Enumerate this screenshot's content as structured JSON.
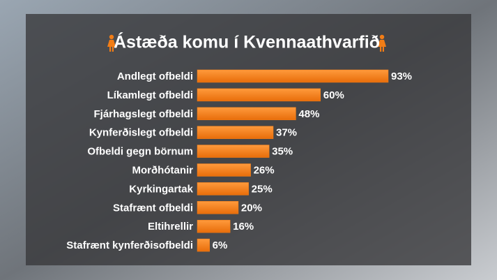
{
  "chart_data": {
    "type": "bar",
    "orientation": "horizontal",
    "title": "Ástæða komu í Kvennaathvarfið",
    "categories": [
      "Andlegt ofbeldi",
      "Líkamlegt ofbeldi",
      "Fjárhagslegt ofbeldi",
      "Kynferðislegt ofbeldi",
      "Ofbeldi gegn börnum",
      "Morðhótanir",
      "Kyrkingartak",
      "Stafrænt ofbeldi",
      "Eltihrellir",
      "Stafrænt kynferðisofbeldi"
    ],
    "values": [
      93,
      60,
      48,
      37,
      35,
      26,
      25,
      20,
      16,
      6
    ],
    "value_labels": [
      "93%",
      "60%",
      "48%",
      "37%",
      "35%",
      "26%",
      "25%",
      "20%",
      "16%",
      "6%"
    ],
    "color": "#f27d16"
  }
}
